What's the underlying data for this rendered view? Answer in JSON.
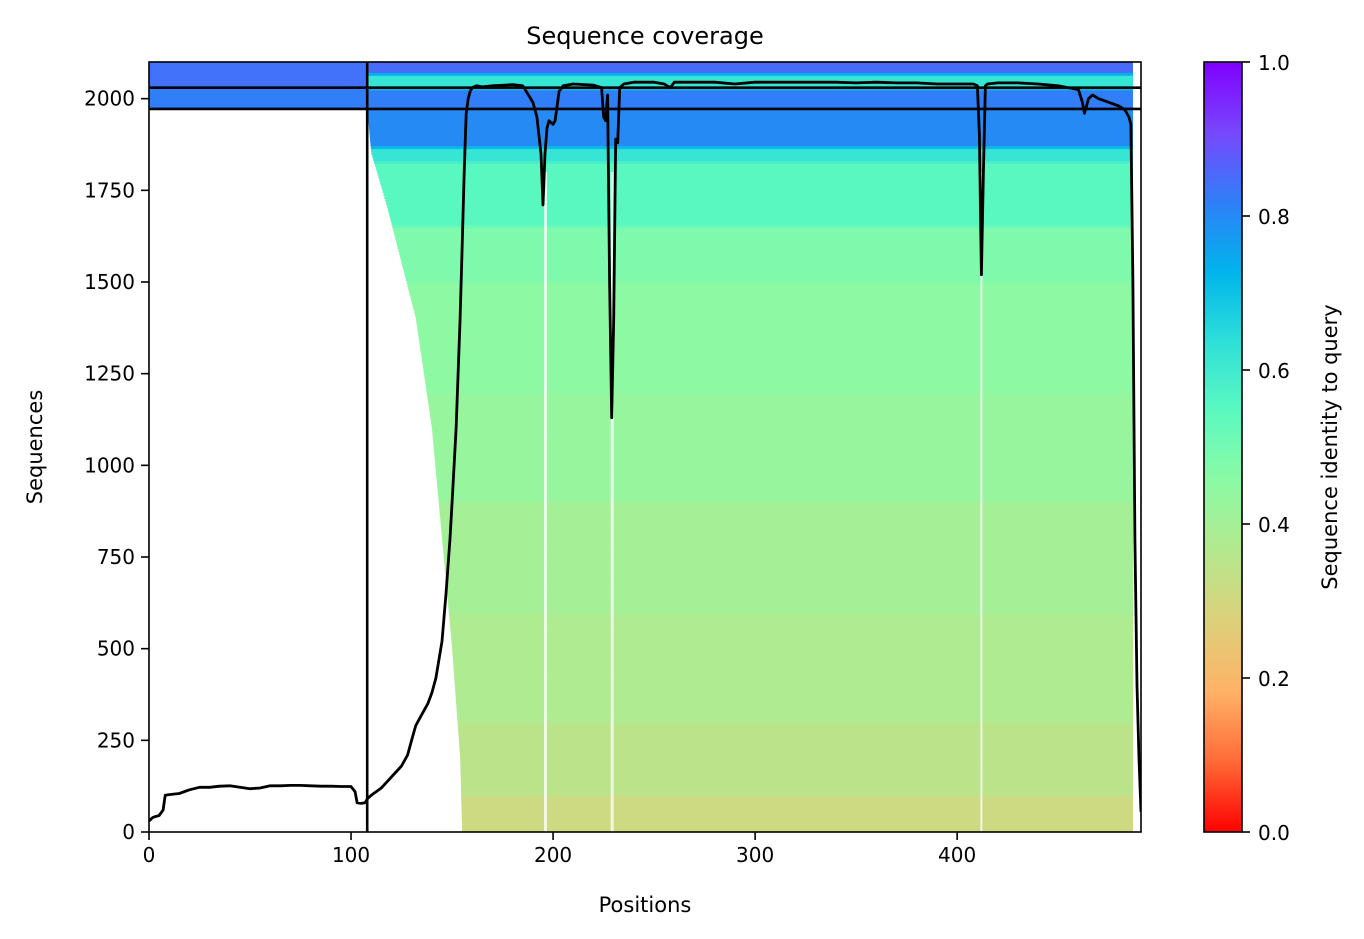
{
  "chart_data": {
    "type": "heatmap",
    "title": "Sequence coverage",
    "xlabel": "Positions",
    "ylabel": "Sequences",
    "xlim": [
      0,
      491
    ],
    "ylim": [
      0,
      2100
    ],
    "xticks": [
      0,
      100,
      200,
      300,
      400
    ],
    "yticks": [
      0,
      250,
      500,
      750,
      1000,
      1250,
      1500,
      1750,
      2000
    ],
    "grid": false,
    "colorbar": {
      "label": "Sequence identity to query",
      "range": [
        0.0,
        1.0
      ],
      "ticks": [
        "0.0",
        "0.2",
        "0.4",
        "0.6",
        "0.8",
        "1.0"
      ],
      "colormap": "rainbow_r",
      "stops": [
        "#ff0000",
        "#ff6a36",
        "#ffb266",
        "#ddd07a",
        "#b5e88d",
        "#8cfaa4",
        "#5cf9c0",
        "#2ee0d8",
        "#00b4eb",
        "#2f7ff8",
        "#7847fd",
        "#8000ff"
      ]
    },
    "boundary_lines": {
      "vertical_x": [
        108
      ],
      "horizontal_y": [
        1972,
        2030
      ]
    },
    "identity_bands": [
      {
        "y": [
          0,
          100
        ],
        "identity": 0.31
      },
      {
        "y": [
          100,
          300
        ],
        "identity": 0.35
      },
      {
        "y": [
          300,
          600
        ],
        "identity": 0.38
      },
      {
        "y": [
          600,
          900
        ],
        "identity": 0.4
      },
      {
        "y": [
          900,
          1200
        ],
        "identity": 0.43
      },
      {
        "y": [
          1200,
          1500
        ],
        "identity": 0.45
      },
      {
        "y": [
          1500,
          1650
        ],
        "identity": 0.48
      },
      {
        "y": [
          1650,
          1830
        ],
        "identity": 0.55
      },
      {
        "y": [
          1830,
          1870
        ],
        "identity": 0.62
      },
      {
        "y": [
          1870,
          1972
        ],
        "identity": 0.8
      },
      {
        "y": [
          1972,
          2030
        ],
        "identity": 0.82
      },
      {
        "y": [
          2030,
          2070
        ],
        "identity": 0.62
      },
      {
        "y": [
          2070,
          2100
        ],
        "identity": 0.85
      }
    ],
    "coverage_start": [
      {
        "y": 0,
        "x": 155
      },
      {
        "y": 200,
        "x": 154
      },
      {
        "y": 500,
        "x": 150
      },
      {
        "y": 800,
        "x": 145
      },
      {
        "y": 1100,
        "x": 140
      },
      {
        "y": 1400,
        "x": 132
      },
      {
        "y": 1700,
        "x": 118
      },
      {
        "y": 1850,
        "x": 110
      },
      {
        "y": 1972,
        "x": 108
      }
    ],
    "series": [
      {
        "type": "line",
        "color": "#000000",
        "x": [
          0,
          2,
          5,
          7,
          8,
          10,
          15,
          20,
          25,
          30,
          35,
          40,
          45,
          50,
          55,
          60,
          65,
          70,
          75,
          80,
          85,
          90,
          95,
          100,
          102,
          103,
          105,
          107,
          108,
          110,
          115,
          120,
          125,
          128,
          130,
          132,
          135,
          138,
          140,
          142,
          145,
          147,
          149,
          150,
          151,
          152,
          153,
          154,
          155,
          156,
          157,
          158,
          159,
          160,
          162,
          165,
          170,
          180,
          185,
          190,
          192,
          194,
          195,
          196,
          197,
          198,
          200,
          201,
          202,
          203,
          205,
          210,
          220,
          224,
          225,
          226,
          227,
          228,
          229,
          230,
          231,
          232,
          233,
          235,
          240,
          250,
          255,
          258,
          260,
          265,
          270,
          280,
          290,
          300,
          310,
          320,
          330,
          340,
          350,
          360,
          370,
          380,
          390,
          400,
          405,
          408,
          410,
          411,
          412,
          413,
          414,
          415,
          420,
          430,
          440,
          450,
          455,
          460,
          462,
          463,
          464,
          465,
          467,
          470,
          475,
          480,
          483,
          485,
          486,
          487,
          488,
          489,
          490,
          491
        ],
        "y": [
          30,
          40,
          45,
          60,
          100,
          102,
          105,
          115,
          122,
          122,
          125,
          126,
          122,
          118,
          120,
          126,
          126,
          127,
          127,
          126,
          125,
          125,
          124,
          124,
          110,
          80,
          78,
          80,
          90,
          100,
          120,
          150,
          180,
          210,
          250,
          290,
          320,
          350,
          380,
          420,
          520,
          650,
          800,
          900,
          1000,
          1100,
          1250,
          1400,
          1600,
          1800,
          1960,
          2000,
          2020,
          2030,
          2035,
          2032,
          2035,
          2038,
          2035,
          1990,
          1950,
          1850,
          1710,
          1850,
          1920,
          1940,
          1930,
          1940,
          1980,
          2020,
          2035,
          2040,
          2037,
          2030,
          1950,
          1940,
          2010,
          1500,
          1130,
          1400,
          1890,
          1880,
          2030,
          2040,
          2045,
          2045,
          2040,
          2030,
          2045,
          2045,
          2045,
          2045,
          2040,
          2045,
          2045,
          2045,
          2045,
          2045,
          2043,
          2045,
          2043,
          2043,
          2040,
          2040,
          2040,
          2040,
          2035,
          1900,
          1520,
          1800,
          2035,
          2040,
          2043,
          2043,
          2040,
          2035,
          2030,
          2025,
          1990,
          1960,
          1980,
          2000,
          2010,
          2000,
          1990,
          1980,
          1970,
          1950,
          1930,
          1500,
          800,
          400,
          200,
          55
        ]
      }
    ],
    "dips": [
      {
        "x": 196,
        "width": 3
      },
      {
        "x": 229,
        "width": 3
      },
      {
        "x": 412,
        "width": 2
      }
    ]
  }
}
